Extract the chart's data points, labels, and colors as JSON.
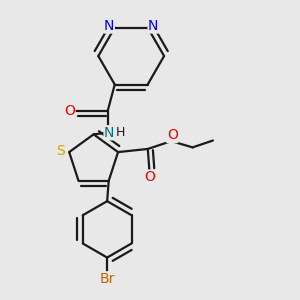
{
  "bg_color": "#e8e8e8",
  "bond_color": "#1a1a1a",
  "bond_width": 1.6,
  "atom_colors": {
    "N": "#0000ee",
    "O": "#ee0000",
    "S": "#ccaa00",
    "Br": "#bb6600",
    "NH": "#007070"
  },
  "font_size": 10,
  "fig_size": [
    3.0,
    3.0
  ],
  "dpi": 100,
  "xlim": [
    0.1,
    0.9
  ],
  "ylim": [
    0.03,
    0.97
  ]
}
